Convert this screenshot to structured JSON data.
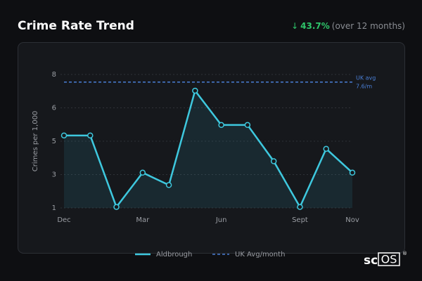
{
  "chart_data": {
    "type": "line",
    "title": "Crime Rate Trend",
    "change": {
      "arrow": "↓",
      "label": "43.7%",
      "note": "(over 12 months)"
    },
    "y_label": "Crimes per 1,000",
    "categories": [
      "Dec",
      null,
      null,
      "Mar",
      null,
      null,
      "Jun",
      null,
      null,
      "Sept",
      null,
      "Nov"
    ],
    "series": [
      {
        "name": "Aldbrough",
        "color": "#3ec8de",
        "values": [
          4.8,
          4.8,
          1.05,
          2.85,
          2.2,
          7.15,
          5.35,
          5.35,
          3.45,
          1.05,
          4.1,
          2.85
        ]
      }
    ],
    "reference": {
      "name": "UK Avg/month",
      "color": "#4a7fd6",
      "value": 7.6,
      "label_lines": [
        "UK avg",
        "7.6/m"
      ]
    },
    "ylim": [
      1,
      8
    ],
    "yticks": [
      1,
      {
        "value": 2.75,
        "label": "3"
      },
      {
        "value": 4.5,
        "label": "5"
      },
      {
        "value": 6.25,
        "label": "6"
      },
      8
    ],
    "grid": true,
    "watermark": {
      "prefix": "sc",
      "boxed": "OS",
      "mark": "®"
    }
  }
}
